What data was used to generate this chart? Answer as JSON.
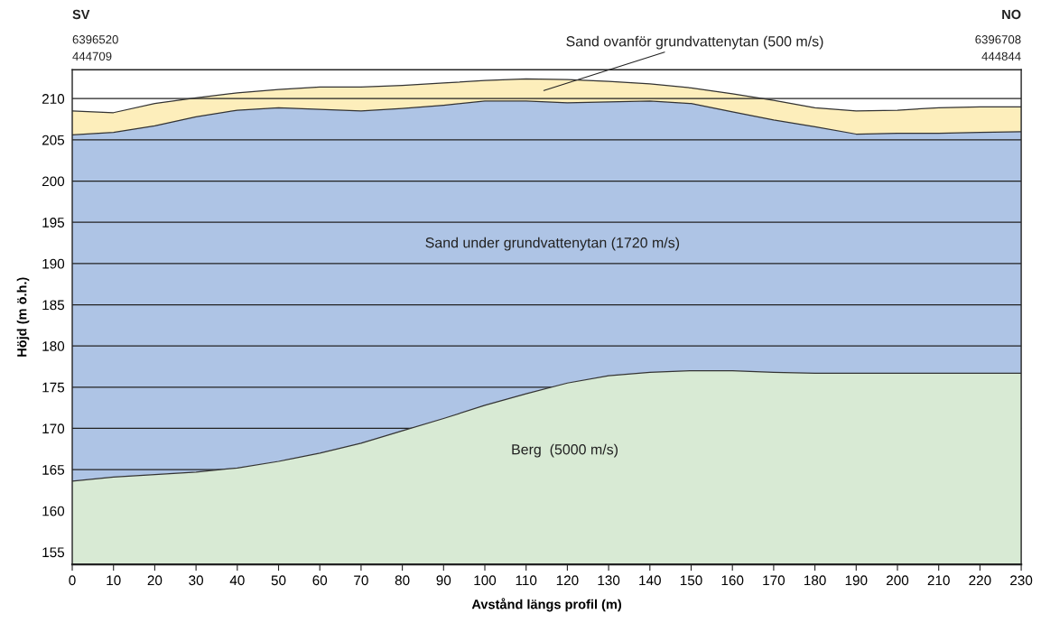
{
  "chart_data": {
    "type": "area",
    "xlabel": "Avstånd längs profil (m)",
    "ylabel": "Höjd (m ö.h.)",
    "x": [
      0,
      10,
      20,
      30,
      40,
      50,
      60,
      70,
      80,
      90,
      100,
      110,
      120,
      130,
      140,
      150,
      160,
      170,
      180,
      190,
      200,
      210,
      220,
      230
    ],
    "series": [
      {
        "name": "Sand ovanför grundvattenytan (500 m/s)",
        "color": "#fdeebb",
        "values": [
          208.5,
          208.3,
          209.4,
          210.1,
          210.7,
          211.1,
          211.4,
          211.4,
          211.6,
          211.9,
          212.2,
          212.4,
          212.3,
          212.1,
          211.8,
          211.3,
          210.6,
          209.8,
          208.9,
          208.5,
          208.6,
          208.9,
          209.0,
          209.0
        ]
      },
      {
        "name": "Sand under grundvattenytan (1720 m/s)",
        "color": "#aec4e5",
        "values": [
          205.6,
          205.9,
          206.7,
          207.8,
          208.6,
          208.9,
          208.7,
          208.5,
          208.8,
          209.2,
          209.7,
          209.7,
          209.5,
          209.6,
          209.7,
          209.4,
          208.4,
          207.4,
          206.6,
          205.7,
          205.8,
          205.8,
          205.9,
          206.0
        ]
      },
      {
        "name": "Berg  (5000 m/s)",
        "color": "#d8ead4",
        "values": [
          163.6,
          164.1,
          164.4,
          164.7,
          165.2,
          166.0,
          167.0,
          168.2,
          169.7,
          171.2,
          172.8,
          174.2,
          175.5,
          176.4,
          176.8,
          177.0,
          177.0,
          176.8,
          176.7,
          176.7,
          176.7,
          176.7,
          176.7,
          176.7
        ]
      }
    ],
    "xlim": [
      0,
      230
    ],
    "xticks": [
      0,
      10,
      20,
      30,
      40,
      50,
      60,
      70,
      80,
      90,
      100,
      110,
      120,
      130,
      140,
      150,
      160,
      170,
      180,
      190,
      200,
      210,
      220,
      230
    ],
    "ylim": [
      153.5,
      213.5
    ],
    "yticks": [
      155,
      160,
      165,
      170,
      175,
      180,
      185,
      190,
      195,
      200,
      205,
      210
    ],
    "grid": "y",
    "annotations": [
      "SV",
      "6396520",
      "444709",
      "NO",
      "6396708",
      "444844"
    ]
  }
}
